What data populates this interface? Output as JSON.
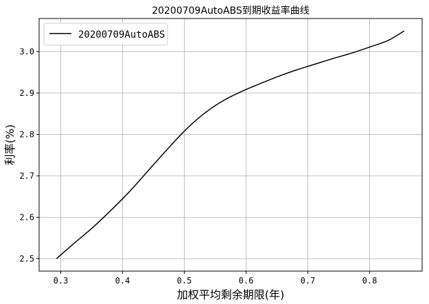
{
  "chart_data": {
    "type": "line",
    "title": "20200709AutoABS到期收益率曲线",
    "xlabel": "加权平均剩余期限(年)",
    "ylabel": "利率(%)",
    "xlim": [
      0.265,
      0.885
    ],
    "ylim": [
      2.47,
      3.08
    ],
    "xticks": [
      0.3,
      0.4,
      0.5,
      0.6,
      0.7,
      0.8
    ],
    "xtick_labels": [
      "0.3",
      "0.4",
      "0.5",
      "0.6",
      "0.7",
      "0.8"
    ],
    "yticks": [
      2.5,
      2.6,
      2.7,
      2.8,
      2.9,
      3.0
    ],
    "ytick_labels": [
      "2.5",
      "2.6",
      "2.7",
      "2.8",
      "2.9",
      "3.0"
    ],
    "grid": true,
    "legend_position": "top-left",
    "series": [
      {
        "name": "20200709AutoABS",
        "color": "#000000",
        "x": [
          0.293,
          0.32,
          0.35,
          0.38,
          0.41,
          0.44,
          0.47,
          0.5,
          0.53,
          0.56,
          0.59,
          0.62,
          0.65,
          0.68,
          0.71,
          0.74,
          0.77,
          0.8,
          0.83,
          0.856
        ],
        "y": [
          2.5,
          2.535,
          2.573,
          2.615,
          2.66,
          2.71,
          2.76,
          2.808,
          2.848,
          2.879,
          2.902,
          2.921,
          2.939,
          2.955,
          2.969,
          2.983,
          2.996,
          3.011,
          3.027,
          3.05
        ]
      }
    ]
  }
}
